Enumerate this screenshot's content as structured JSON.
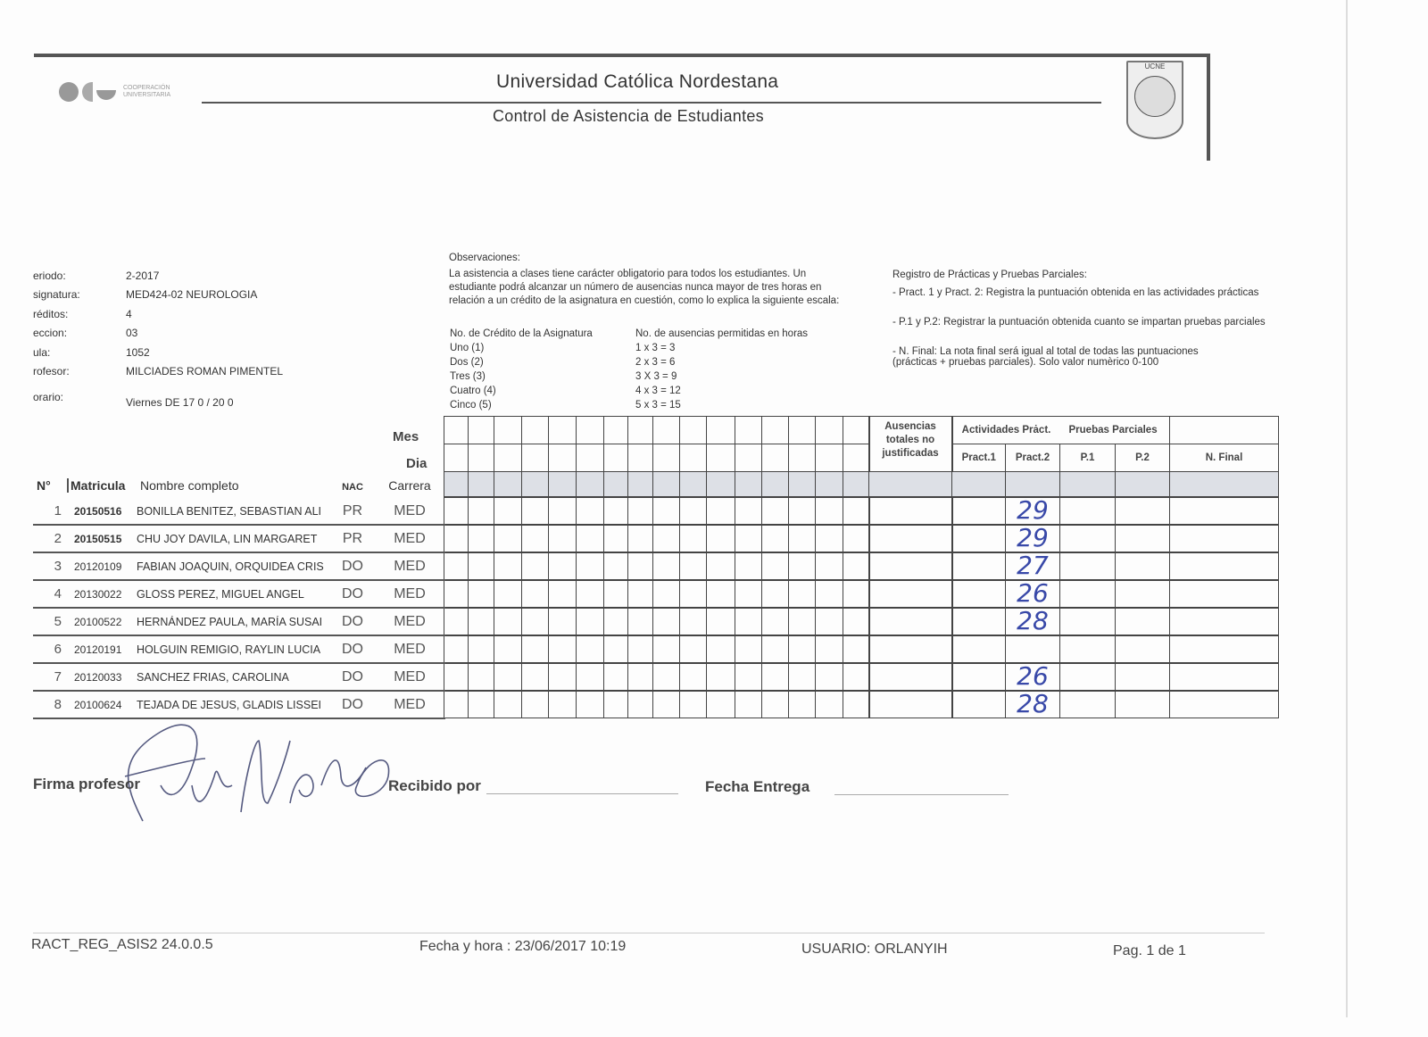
{
  "header": {
    "title": "Universidad Católica Nordestana",
    "subtitle": "Control de Asistencia de Estudiantes",
    "logo_text": "COOPERACIÓN UNIVERSITARIA",
    "seal_text": "UCNE"
  },
  "info": [
    {
      "label": "eriodo:",
      "value": "2-2017"
    },
    {
      "label": "signatura:",
      "value": "MED424-02 NEUROLOGIA"
    },
    {
      "label": "réditos:",
      "value": "4"
    },
    {
      "label": "eccion:",
      "value": "03"
    },
    {
      "label": "ula:",
      "value": "1052"
    },
    {
      "label": "rofesor:",
      "value": "MILCIADES ROMAN PIMENTEL"
    },
    {
      "label": "orario:",
      "value": "Viernes DE 17 0 / 20 0"
    }
  ],
  "observaciones": {
    "title": "Observaciones:",
    "text": "La asistencia a clases tiene carácter obligatorio para todos los estudiantes. Un estudiante podrá alcanzar un número de ausencias nunca mayor de tres horas en relación a un crédito de la asignatura en cuestión, como lo explica la siguiente escala:",
    "col1": "No. de Crédito de la Asignatura",
    "col2": "No. de ausencias permitidas en horas",
    "rows": [
      [
        "Uno (1)",
        "1 x 3 = 3"
      ],
      [
        "Dos (2)",
        "2 x 3 = 6"
      ],
      [
        "Tres (3)",
        "3 X 3 = 9"
      ],
      [
        "Cuatro (4)",
        "4 x 3 = 12"
      ],
      [
        "Cinco (5)",
        "5 x 3 = 15"
      ]
    ]
  },
  "registro": {
    "title": "Registro de Prácticas y Pruebas Parciales:",
    "items": [
      "- Pract. 1 y Pract. 2: Registra la puntuación obtenida en las actividades prácticas",
      "- P.1 y P.2: Registrar la puntuación obtenida cuanto se impartan pruebas parciales",
      "- N. Final: La nota final será igual al total de todas las puntuaciones",
      "(prácticas + pruebas parciales). Solo valor numèrico 0-100"
    ]
  },
  "table": {
    "mes": "Mes",
    "dia": "Dia",
    "ausencias": "Ausencias totales no justificadas",
    "actividades": "Actividades Prȧct.",
    "pruebas": "Pruebas Parciales",
    "pract1": "Pract.1",
    "pract2": "Pract.2",
    "p1": "P.1",
    "p2": "P.2",
    "nfinal": "N. Final",
    "columns": {
      "n": "N°",
      "matricula": "Matricula",
      "nombre": "Nombre completo",
      "nac": "NAC",
      "carrera": "Carrera"
    },
    "rows": [
      {
        "n": "1",
        "matricula": "20150516",
        "nombre": "BONILLA BENITEZ, SEBASTIAN ALI",
        "nac": "PR",
        "carrera": "MED",
        "pract2": "29"
      },
      {
        "n": "2",
        "matricula": "20150515",
        "nombre": "CHU JOY DAVILA, LIN MARGARET",
        "nac": "PR",
        "carrera": "MED",
        "pract2": "29"
      },
      {
        "n": "3",
        "matricula": "20120109",
        "nombre": "FABIAN JOAQUIN, ORQUIDEA CRIS",
        "nac": "DO",
        "carrera": "MED",
        "pract2": "27"
      },
      {
        "n": "4",
        "matricula": "20130022",
        "nombre": "GLOSS PEREZ, MIGUEL ANGEL",
        "nac": "DO",
        "carrera": "MED",
        "pract2": "26"
      },
      {
        "n": "5",
        "matricula": "20100522",
        "nombre": "HERNÁNDEZ PAULA, MARÍA SUSAI",
        "nac": "DO",
        "carrera": "MED",
        "pract2": "28"
      },
      {
        "n": "6",
        "matricula": "20120191",
        "nombre": "HOLGUIN REMIGIO, RAYLIN LUCIA",
        "nac": "DO",
        "carrera": "MED",
        "pract2": ""
      },
      {
        "n": "7",
        "matricula": "20120033",
        "nombre": "SANCHEZ FRIAS, CAROLINA",
        "nac": "DO",
        "carrera": "MED",
        "pract2": "26"
      },
      {
        "n": "8",
        "matricula": "20100624",
        "nombre": "TEJADA DE JESUS, GLADIS LISSEI",
        "nac": "DO",
        "carrera": "MED",
        "pract2": "28"
      }
    ]
  },
  "signatures": {
    "firma": "Firma profesor",
    "recibido": "Recibido por",
    "fecha": "Fecha Entrega"
  },
  "footer": {
    "report": "RACT_REG_ASIS2  24.0.0.5",
    "fecha": "Fecha y hora : 23/06/2017 10:19",
    "usuario": "USUARIO:  ORLANYIH",
    "pagina": "Pag. 1 de 1"
  },
  "colors": {
    "ink": "#3848a8",
    "rule": "#555555"
  }
}
